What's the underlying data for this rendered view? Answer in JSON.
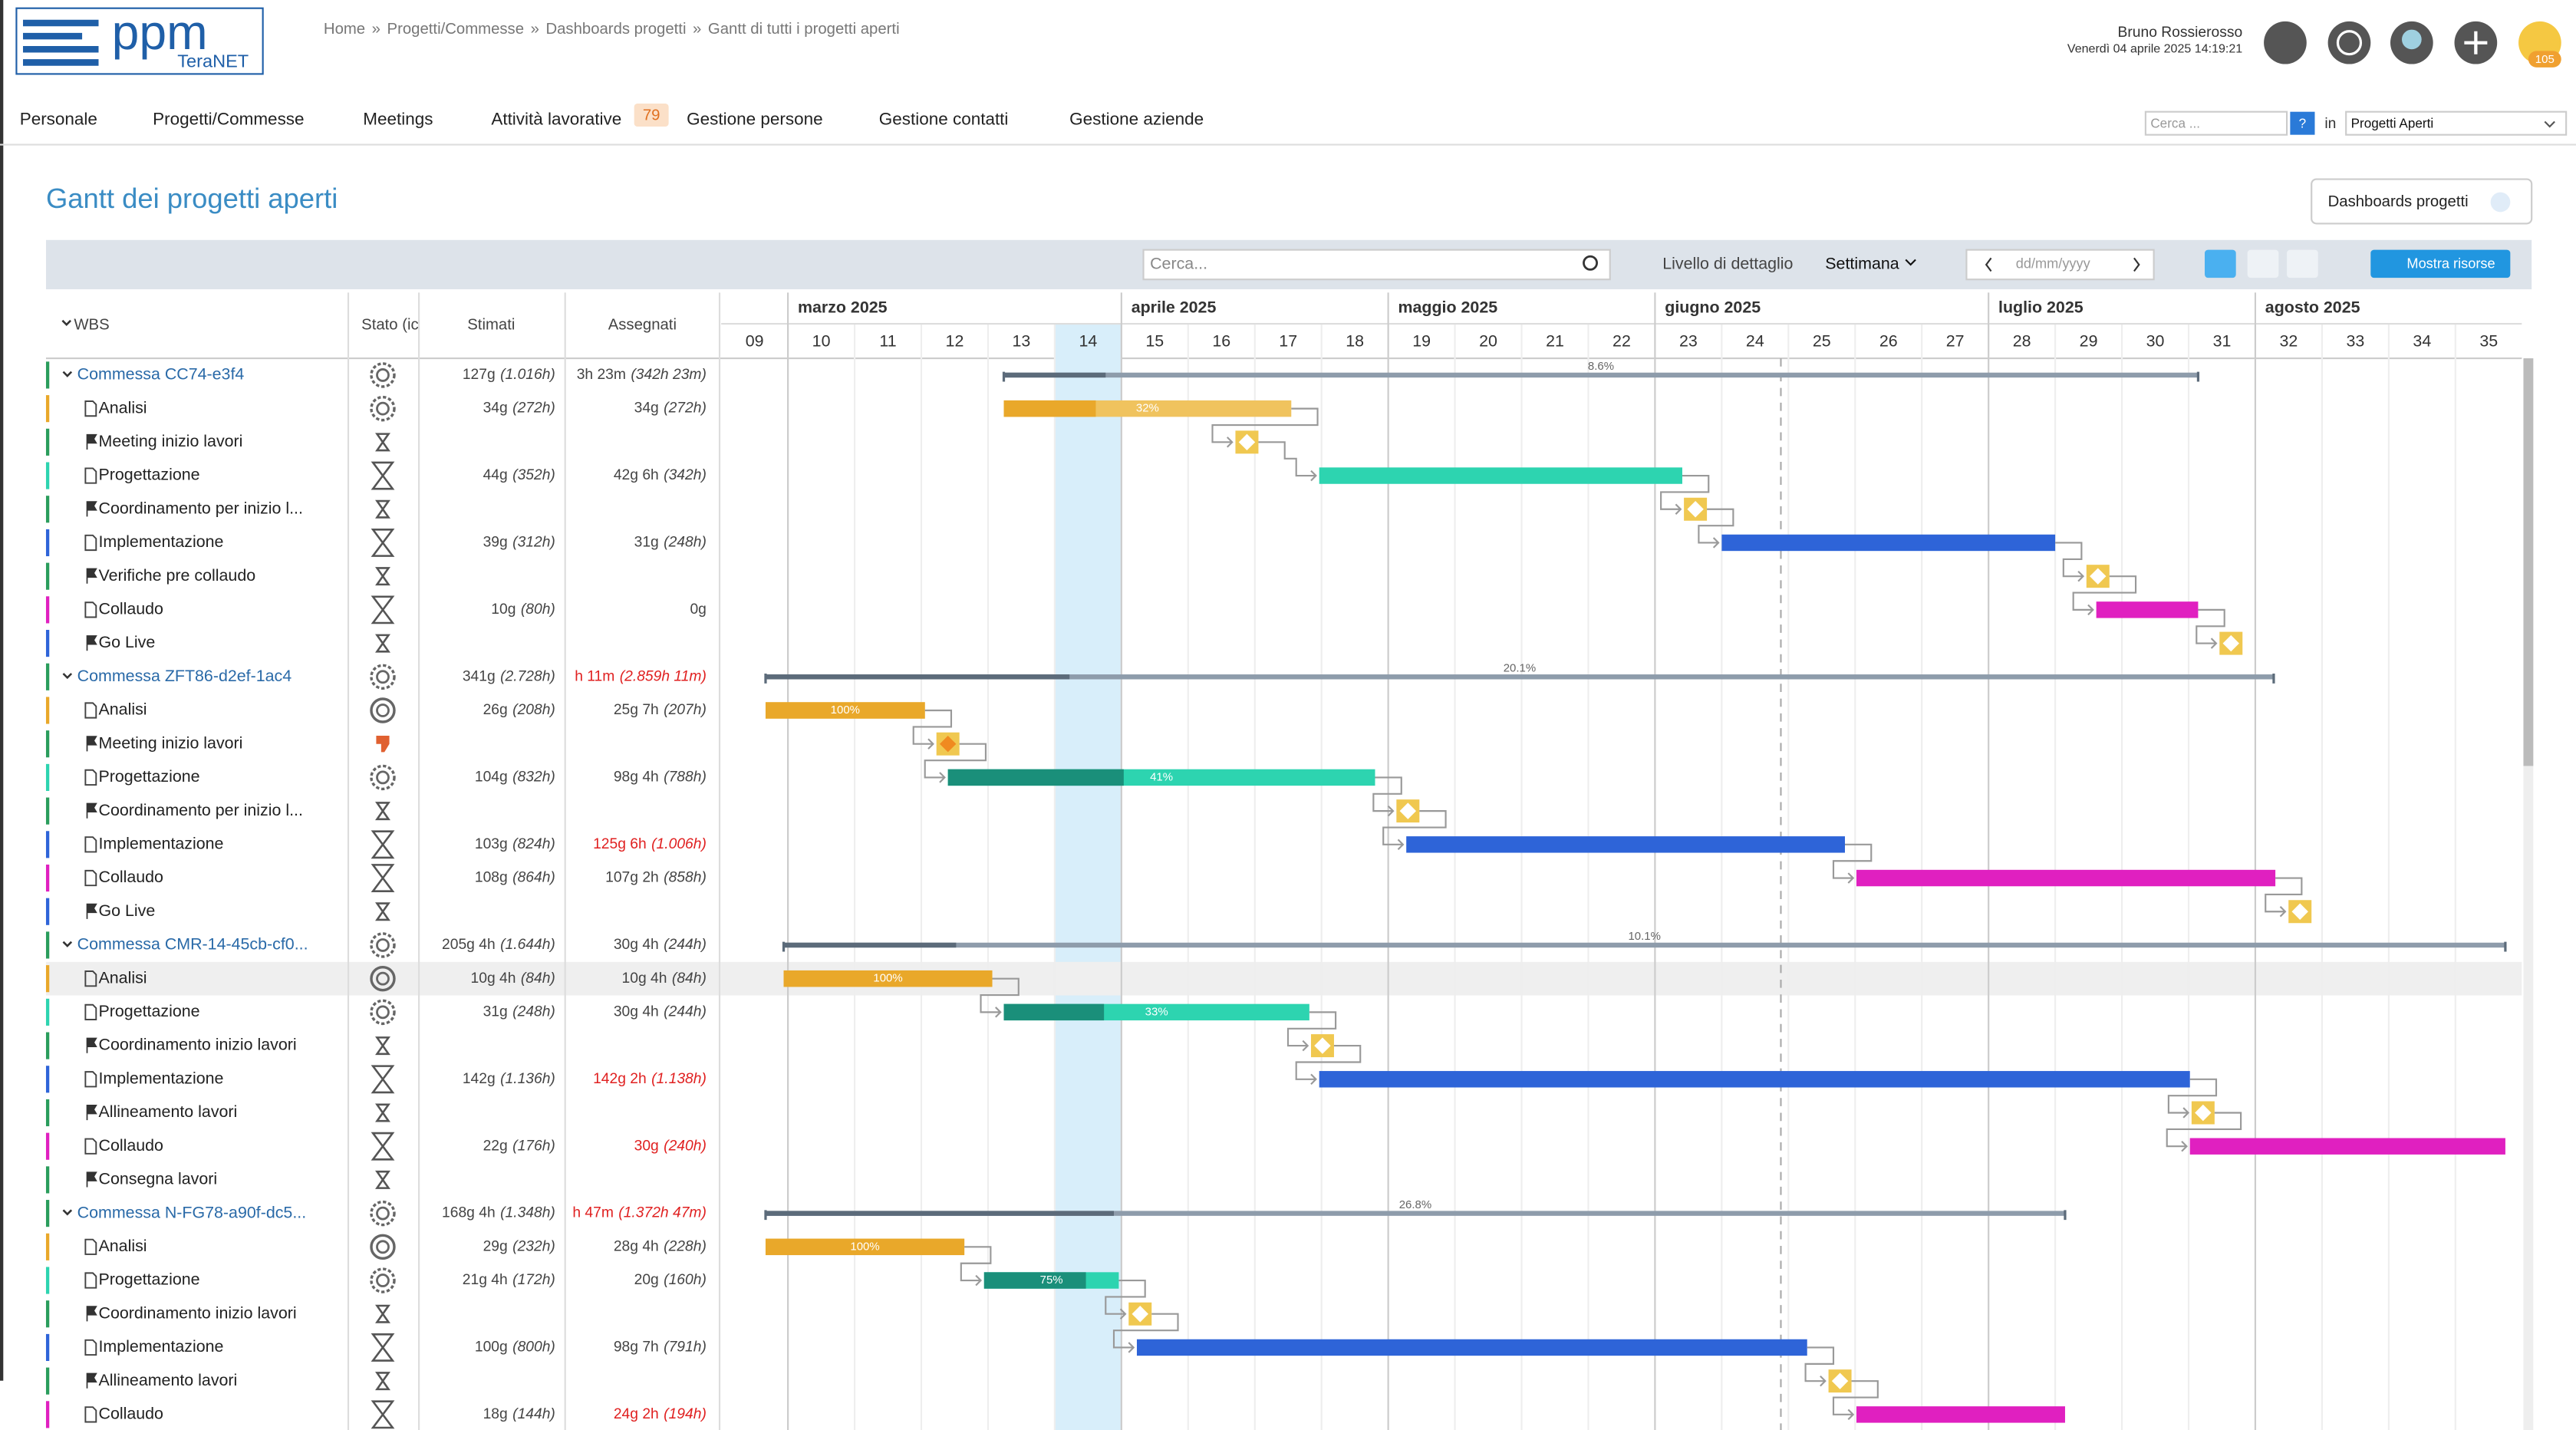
{
  "header": {
    "logo": "ppm",
    "logo_sub": "TeraNET",
    "breadcrumb": [
      "Home",
      "Progetti/Commesse",
      "Dashboards progetti",
      "Gantt di tutti i progetti aperti"
    ],
    "separator": "»",
    "user": "Bruno Rossierosso",
    "datetime": "Venerdì 04 aprile 2025 14:19:21",
    "notifications": "105"
  },
  "nav": {
    "items": [
      "Personale",
      "Progetti/Commesse",
      "Meetings",
      "Attività lavorative",
      "Gestione persone",
      "Gestione contatti",
      "Gestione aziende"
    ],
    "badge": "79",
    "search_placeholder": "Cerca ...",
    "help": "?",
    "in": "in",
    "scope": "Progetti Aperti"
  },
  "page": {
    "title": "Gantt dei progetti aperti",
    "dashboards_button": "Dashboards progetti"
  },
  "toolbar": {
    "search_placeholder": "Cerca...",
    "detail_label": "Livello di dettaglio",
    "detail_value": "Settimana",
    "date_placeholder": "dd/mm/yyyy",
    "resources_button": "Mostra risorse"
  },
  "grid": {
    "columns": [
      "WBS",
      "Stato (ic",
      "Stimati",
      "Assegnati"
    ],
    "months": [
      "marzo 2025",
      "aprile 2025",
      "maggio 2025",
      "giugno 2025",
      "luglio 2025",
      "agosto 2025"
    ],
    "weeks": [
      "09",
      "10",
      "11",
      "12",
      "13",
      "14",
      "15",
      "16",
      "17",
      "18",
      "19",
      "20",
      "21",
      "22",
      "23",
      "24",
      "25",
      "26",
      "27",
      "28",
      "29",
      "30",
      "31",
      "32",
      "33",
      "34",
      "35"
    ],
    "rows": [
      {
        "kind": "project",
        "label": "Commessa CC74-e3f4",
        "est": "127g",
        "est_h": "(1.016h)",
        "ass": "3h 23m",
        "ass_h": "(342h 23m)",
        "bar_label": "8.6%",
        "color": "#2a9d5c"
      },
      {
        "kind": "task",
        "label": "Analisi",
        "est": "34g",
        "est_h": "(272h)",
        "ass": "34g",
        "ass_h": "(272h)",
        "bar_label": "32%",
        "color": "#e9a82a"
      },
      {
        "kind": "milestone",
        "label": "Meeting inizio lavori",
        "color": "#2a9d5c"
      },
      {
        "kind": "task",
        "label": "Progettazione",
        "est": "44g",
        "est_h": "(352h)",
        "ass": "42g 6h",
        "ass_h": "(342h)",
        "color": "#2dd4b0"
      },
      {
        "kind": "milestone",
        "label": "Coordinamento per inizio l...",
        "color": "#2a9d5c"
      },
      {
        "kind": "task",
        "label": "Implementazione",
        "est": "39g",
        "est_h": "(312h)",
        "ass": "31g",
        "ass_h": "(248h)",
        "color": "#2e64d8"
      },
      {
        "kind": "milestone",
        "label": "Verifiche pre collaudo",
        "color": "#2a9d5c"
      },
      {
        "kind": "task",
        "label": "Collaudo",
        "est": "10g",
        "est_h": "(80h)",
        "ass": "0g",
        "color": "#e020c0"
      },
      {
        "kind": "milestone",
        "label": "Go Live",
        "color": "#2e64d8"
      },
      {
        "kind": "project",
        "label": "Commessa ZFT86-d2ef-1ac4",
        "est": "341g",
        "est_h": "(2.728h)",
        "ass": "h 11m",
        "ass_h": "(2.859h 11m)",
        "over_budget": true,
        "bar_label": "20.1%",
        "color": "#2a9d5c"
      },
      {
        "kind": "task",
        "label": "Analisi",
        "est": "26g",
        "est_h": "(208h)",
        "ass": "25g 7h",
        "ass_h": "(207h)",
        "bar_label": "100%",
        "color": "#e9a82a"
      },
      {
        "kind": "milestone",
        "label": "Meeting inizio lavori",
        "color": "#2a9d5c"
      },
      {
        "kind": "task",
        "label": "Progettazione",
        "est": "104g",
        "est_h": "(832h)",
        "ass": "98g 4h",
        "ass_h": "(788h)",
        "bar_label": "41%",
        "color": "#2dd4b0"
      },
      {
        "kind": "milestone",
        "label": "Coordinamento per inizio l...",
        "color": "#2a9d5c"
      },
      {
        "kind": "task",
        "label": "Implementazione",
        "est": "103g",
        "est_h": "(824h)",
        "ass": "125g 6h",
        "ass_h": "(1.006h)",
        "over_budget": true,
        "color": "#2e64d8"
      },
      {
        "kind": "task",
        "label": "Collaudo",
        "est": "108g",
        "est_h": "(864h)",
        "ass": "107g 2h",
        "ass_h": "(858h)",
        "color": "#e020c0"
      },
      {
        "kind": "milestone",
        "label": "Go Live",
        "color": "#2e64d8"
      },
      {
        "kind": "project",
        "label": "Commessa CMR-14-45cb-cf0...",
        "est": "205g 4h",
        "est_h": "(1.644h)",
        "ass": "30g 4h",
        "ass_h": "(244h)",
        "bar_label": "10.1%",
        "color": "#2a9d5c"
      },
      {
        "kind": "task",
        "label": "Analisi",
        "est": "10g 4h",
        "est_h": "(84h)",
        "ass": "10g 4h",
        "ass_h": "(84h)",
        "bar_label": "100%",
        "color": "#e9a82a"
      },
      {
        "kind": "task",
        "label": "Progettazione",
        "est": "31g",
        "est_h": "(248h)",
        "ass": "30g 4h",
        "ass_h": "(244h)",
        "bar_label": "33%",
        "color": "#2dd4b0"
      },
      {
        "kind": "milestone",
        "label": "Coordinamento inizio lavori",
        "color": "#2a9d5c"
      },
      {
        "kind": "task",
        "label": "Implementazione",
        "est": "142g",
        "est_h": "(1.136h)",
        "ass": "142g 2h",
        "ass_h": "(1.138h)",
        "over_budget": true,
        "color": "#2e64d8"
      },
      {
        "kind": "milestone",
        "label": "Allineamento lavori",
        "color": "#2a9d5c"
      },
      {
        "kind": "task",
        "label": "Collaudo",
        "est": "22g",
        "est_h": "(176h)",
        "ass": "30g",
        "ass_h": "(240h)",
        "over_budget": true,
        "color": "#e020c0"
      },
      {
        "kind": "milestone",
        "label": "Consegna lavori",
        "color": "#2a9d5c"
      },
      {
        "kind": "project",
        "label": "Commessa N-FG78-a90f-dc5...",
        "est": "168g 4h",
        "est_h": "(1.348h)",
        "ass": "h 47m",
        "ass_h": "(1.372h 47m)",
        "over_budget": true,
        "bar_label": "26.8%",
        "color": "#2a9d5c"
      },
      {
        "kind": "task",
        "label": "Analisi",
        "est": "29g",
        "est_h": "(232h)",
        "ass": "28g 4h",
        "ass_h": "(228h)",
        "bar_label": "100%",
        "color": "#e9a82a"
      },
      {
        "kind": "task",
        "label": "Progettazione",
        "est": "21g 4h",
        "est_h": "(172h)",
        "ass": "20g",
        "ass_h": "(160h)",
        "bar_label": "75%",
        "color": "#2dd4b0"
      },
      {
        "kind": "milestone",
        "label": "Coordinamento inizio lavori",
        "color": "#2a9d5c"
      },
      {
        "kind": "task",
        "label": "Implementazione",
        "est": "100g",
        "est_h": "(800h)",
        "ass": "98g 7h",
        "ass_h": "(791h)",
        "color": "#2e64d8"
      },
      {
        "kind": "milestone",
        "label": "Allineamento lavori",
        "color": "#2a9d5c"
      },
      {
        "kind": "task",
        "label": "Collaudo",
        "est": "18g",
        "est_h": "(144h)",
        "ass": "24g 2h",
        "ass_h": "(194h)",
        "over_budget": true,
        "color": "#e020c0"
      }
    ]
  }
}
